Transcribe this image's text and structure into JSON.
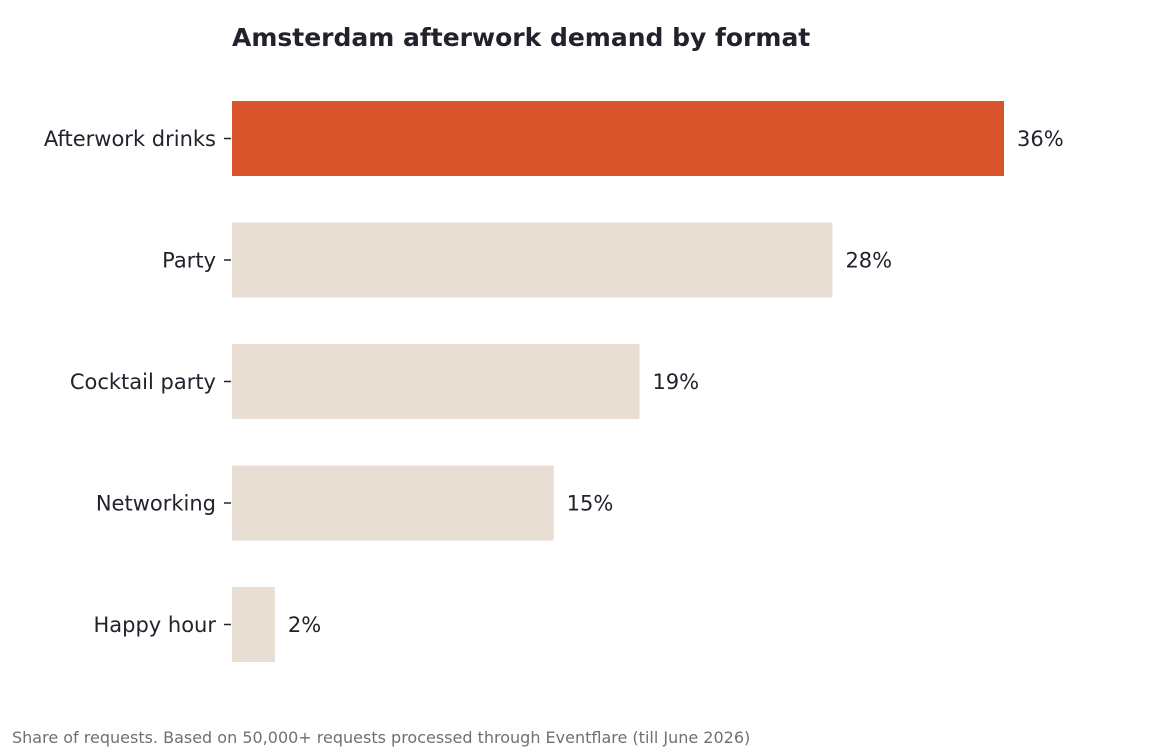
{
  "chart_data": {
    "type": "bar",
    "orientation": "horizontal",
    "title": "Amsterdam afterwork demand by format",
    "categories": [
      "Afterwork drinks",
      "Party",
      "Cocktail party",
      "Networking",
      "Happy hour"
    ],
    "values": [
      36,
      28,
      19,
      15,
      2
    ],
    "value_labels": [
      "36%",
      "28%",
      "19%",
      "15%",
      "2%"
    ],
    "unit": "%",
    "highlight_index": 0,
    "xlim": [
      0,
      36
    ],
    "grid": false,
    "legend": "none",
    "xlabel": "",
    "ylabel": ""
  },
  "footnote": "Share of requests. Based on 50,000+ requests processed through Eventflare (till June 2026)",
  "colors": {
    "highlight_bar": "#d9532b",
    "default_bar": "#e8ded4",
    "text": "#22222c",
    "footnote_text": "#707070",
    "tick": "#22222c",
    "background": "#ffffff"
  }
}
